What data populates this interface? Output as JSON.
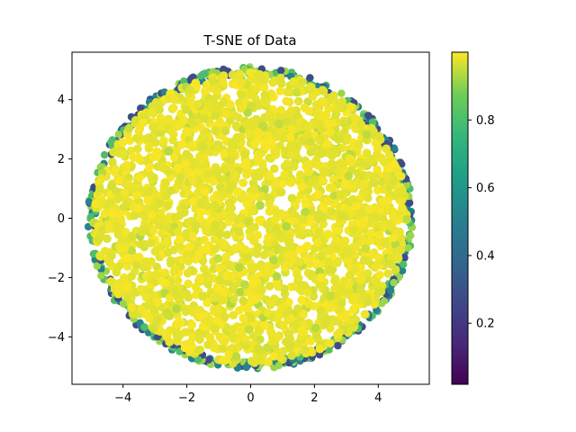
{
  "chart_data": {
    "type": "scatter",
    "title": "T-SNE of Data",
    "xlabel": "",
    "ylabel": "",
    "xlim": [
      -5.6,
      5.6
    ],
    "ylim": [
      -5.6,
      5.6
    ],
    "x_ticks": [
      -4,
      -2,
      0,
      2,
      4
    ],
    "y_ticks": [
      -4,
      -2,
      0,
      2,
      4
    ],
    "x_tick_labels": [
      "−4",
      "−2",
      "0",
      "2",
      "4"
    ],
    "y_tick_labels": [
      "−4",
      "−2",
      "0",
      "2",
      "4"
    ],
    "grid": false,
    "colormap": "viridis",
    "color_range": [
      0.02,
      1.0
    ],
    "colorbar_ticks": [
      0.2,
      0.4,
      0.6,
      0.8
    ],
    "colorbar_tick_labels": [
      "0.2",
      "0.4",
      "0.6",
      "0.8"
    ],
    "point_cloud": {
      "shape": "disk",
      "center": [
        0,
        0
      ],
      "radius": 5.0,
      "dominant_value": 0.97,
      "edge_values": [
        0.25,
        0.45,
        0.7,
        0.85
      ]
    },
    "colors": {
      "viridis_low": "#440154",
      "viridis_mid": "#21918c",
      "viridis_high": "#fde725"
    }
  }
}
